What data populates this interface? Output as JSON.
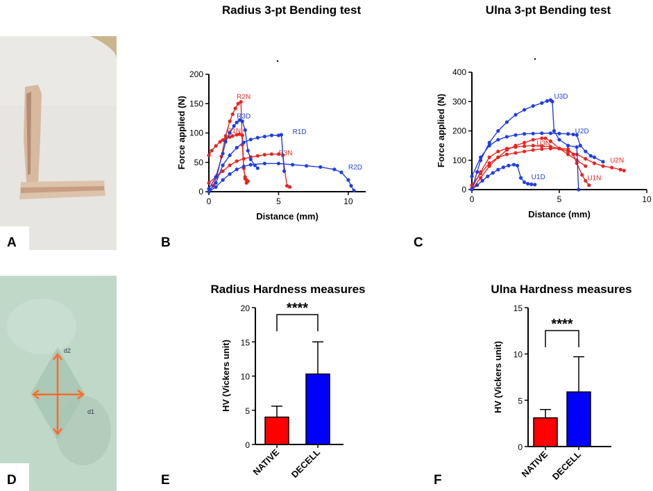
{
  "panels": {
    "a": "A",
    "b": "B",
    "c": "C",
    "d": "D",
    "e": "E",
    "f": "F"
  },
  "photo_a": {
    "description_icon": "bone-photo"
  },
  "photo_d": {
    "description_icon": "indentation-photo",
    "label_d1": "d1",
    "label_d2": "d2"
  },
  "chart_data": [
    {
      "id": "B",
      "type": "line",
      "title": "Radius 3-pt Bending test",
      "xlabel": "Distance (mm)",
      "ylabel": "Force applied (N)",
      "xlim": [
        0,
        11
      ],
      "ylim": [
        0,
        200
      ],
      "xticks": [
        0,
        5,
        10
      ],
      "yticks": [
        0,
        50,
        100,
        150,
        200
      ],
      "series": [
        {
          "name": "R1N",
          "color": "#e8251f",
          "label_at": [
            1.3,
            100
          ],
          "x": [
            0,
            0.2,
            0.5,
            0.8,
            1.0,
            1.2,
            1.5,
            1.7,
            2.0,
            2.2,
            2.4,
            2.5,
            2.6,
            2.7
          ],
          "y": [
            62,
            70,
            78,
            85,
            88,
            90,
            93,
            95,
            97,
            98,
            96,
            40,
            22,
            15
          ]
        },
        {
          "name": "R2N",
          "color": "#e8251f",
          "label_at": [
            2.0,
            158
          ],
          "x": [
            0,
            0.3,
            0.6,
            0.9,
            1.2,
            1.5,
            1.7,
            1.9,
            2.1,
            2.3,
            2.4,
            2.5,
            2.6,
            2.7,
            2.8
          ],
          "y": [
            0,
            10,
            28,
            60,
            95,
            120,
            132,
            142,
            150,
            153,
            80,
            40,
            25,
            20,
            18
          ]
        },
        {
          "name": "R3N",
          "color": "#e8251f",
          "label_at": [
            5.0,
            62
          ],
          "x": [
            0,
            0.5,
            1.0,
            1.5,
            2.0,
            2.5,
            3.0,
            3.5,
            4.0,
            4.5,
            5.0,
            5.3,
            5.6,
            5.8
          ],
          "y": [
            15,
            25,
            35,
            45,
            52,
            56,
            59,
            61,
            63,
            64,
            64,
            62,
            10,
            8
          ]
        },
        {
          "name": "R1D",
          "color": "#1f3ee0",
          "label_at": [
            6.0,
            98
          ],
          "x": [
            0,
            0.5,
            1.0,
            1.5,
            2.0,
            2.5,
            3.0,
            3.5,
            4.0,
            4.5,
            5.0,
            5.2,
            5.4
          ],
          "y": [
            0,
            15,
            45,
            62,
            75,
            84,
            89,
            92,
            94,
            96,
            96,
            97,
            35
          ]
        },
        {
          "name": "R2D",
          "color": "#1f3ee0",
          "label_at": [
            10.0,
            38
          ],
          "x": [
            0,
            0.5,
            1.0,
            1.5,
            2.0,
            2.5,
            3.0,
            4.0,
            5.0,
            6.0,
            7.0,
            8.0,
            9.0,
            9.5,
            10.0,
            10.2,
            10.4
          ],
          "y": [
            0,
            8,
            20,
            30,
            38,
            43,
            46,
            48,
            48,
            46,
            44,
            42,
            38,
            33,
            20,
            10,
            2
          ]
        },
        {
          "name": "R3D",
          "color": "#1f3ee0",
          "label_at": [
            2.0,
            125
          ],
          "x": [
            0,
            0.5,
            1.0,
            1.2,
            1.5,
            1.8,
            2.0,
            2.2,
            2.4,
            2.6,
            2.8,
            3.0,
            3.3,
            3.5
          ],
          "y": [
            5,
            25,
            65,
            85,
            100,
            112,
            118,
            122,
            120,
            105,
            70,
            55,
            45,
            40
          ]
        }
      ]
    },
    {
      "id": "C",
      "type": "line",
      "title": "Ulna 3-pt Bending test",
      "xlabel": "Distance (mm)",
      "ylabel": "Force applied (N)",
      "xlim": [
        0,
        10
      ],
      "ylim": [
        0,
        400
      ],
      "xticks": [
        0,
        5,
        10
      ],
      "yticks": [
        0,
        100,
        200,
        300,
        400
      ],
      "series": [
        {
          "name": "U1N",
          "color": "#e8251f",
          "label_at": [
            6.6,
            32
          ],
          "x": [
            0,
            0.5,
            1.0,
            1.5,
            2.0,
            2.5,
            3.0,
            3.5,
            4.0,
            4.5,
            5.0,
            5.5,
            5.8,
            6.0,
            6.3,
            6.5,
            6.7
          ],
          "y": [
            15,
            55,
            90,
            110,
            120,
            125,
            130,
            135,
            138,
            140,
            140,
            138,
            120,
            90,
            50,
            30,
            15
          ]
        },
        {
          "name": "U2N",
          "color": "#e8251f",
          "label_at": [
            7.9,
            92
          ],
          "x": [
            0,
            0.5,
            1.0,
            1.5,
            2.0,
            2.5,
            3.0,
            3.5,
            4.0,
            4.5,
            5.0,
            5.5,
            6.0,
            6.5,
            7.0,
            7.5,
            8.0,
            8.5,
            8.7
          ],
          "y": [
            5,
            60,
            110,
            130,
            140,
            145,
            148,
            150,
            148,
            146,
            140,
            130,
            120,
            105,
            90,
            80,
            75,
            68,
            65
          ]
        },
        {
          "name": "U3N",
          "color": "#e8251f",
          "label_at": [
            3.7,
            150
          ],
          "x": [
            0,
            0.5,
            1.0,
            1.5,
            2.0,
            2.5,
            3.0,
            3.5,
            4.0,
            4.2,
            4.5,
            5.0,
            5.5,
            6.0,
            6.5
          ],
          "y": [
            0,
            40,
            80,
            110,
            135,
            150,
            160,
            170,
            175,
            175,
            165,
            140,
            120,
            100,
            80
          ]
        },
        {
          "name": "U1D",
          "color": "#1f3ee0",
          "label_at": [
            3.4,
            35
          ],
          "x": [
            0,
            0.3,
            0.6,
            0.9,
            1.2,
            1.5,
            1.8,
            2.1,
            2.4,
            2.6,
            2.8,
            3.0,
            3.2,
            3.4,
            3.6
          ],
          "y": [
            0,
            15,
            30,
            45,
            57,
            68,
            76,
            82,
            85,
            82,
            40,
            25,
            20,
            18,
            17
          ]
        },
        {
          "name": "U2D",
          "color": "#1f3ee0",
          "label_at": [
            5.9,
            192
          ],
          "x": [
            0,
            0.5,
            1.0,
            1.5,
            2.0,
            2.5,
            3.0,
            3.5,
            4.0,
            4.5,
            5.0,
            5.5,
            5.8,
            6.0,
            6.2,
            6.5,
            6.8,
            7.0,
            7.5
          ],
          "y": [
            45,
            110,
            150,
            170,
            180,
            186,
            190,
            191,
            192,
            192,
            191,
            190,
            188,
            186,
            150,
            130,
            115,
            110,
            95
          ]
        },
        {
          "name": "U3D",
          "color": "#1f3ee0",
          "label_at": [
            4.7,
            310
          ],
          "x": [
            0,
            0.3,
            0.5,
            1.0,
            1.5,
            2.0,
            2.5,
            3.0,
            3.5,
            4.0,
            4.3,
            4.5,
            4.6,
            4.7,
            5.0,
            5.5,
            6.0,
            6.1
          ],
          "y": [
            0,
            60,
            100,
            160,
            200,
            230,
            255,
            272,
            285,
            295,
            302,
            305,
            300,
            200,
            170,
            150,
            145,
            0
          ]
        }
      ]
    },
    {
      "id": "E",
      "type": "bar",
      "title": "Radius Hardness measures",
      "ylabel": "HV (Vickers unit)",
      "categories": [
        "NATIVE",
        "DECELL"
      ],
      "values": [
        4.0,
        10.3
      ],
      "errors": [
        1.6,
        4.7
      ],
      "colors": [
        "#ff0000",
        "#0000ff"
      ],
      "ylim": [
        0,
        20
      ],
      "yticks": [
        0,
        5,
        10,
        15,
        20
      ],
      "significance": "****"
    },
    {
      "id": "F",
      "type": "bar",
      "title": "Ulna Hardness measures",
      "ylabel": "HV (Vickers unit)",
      "categories": [
        "NATIVE",
        "DECELL"
      ],
      "values": [
        3.1,
        5.9
      ],
      "errors": [
        0.9,
        3.8
      ],
      "colors": [
        "#ff0000",
        "#0000ff"
      ],
      "ylim": [
        0,
        15
      ],
      "yticks": [
        0,
        5,
        10,
        15
      ],
      "significance": "****"
    }
  ]
}
